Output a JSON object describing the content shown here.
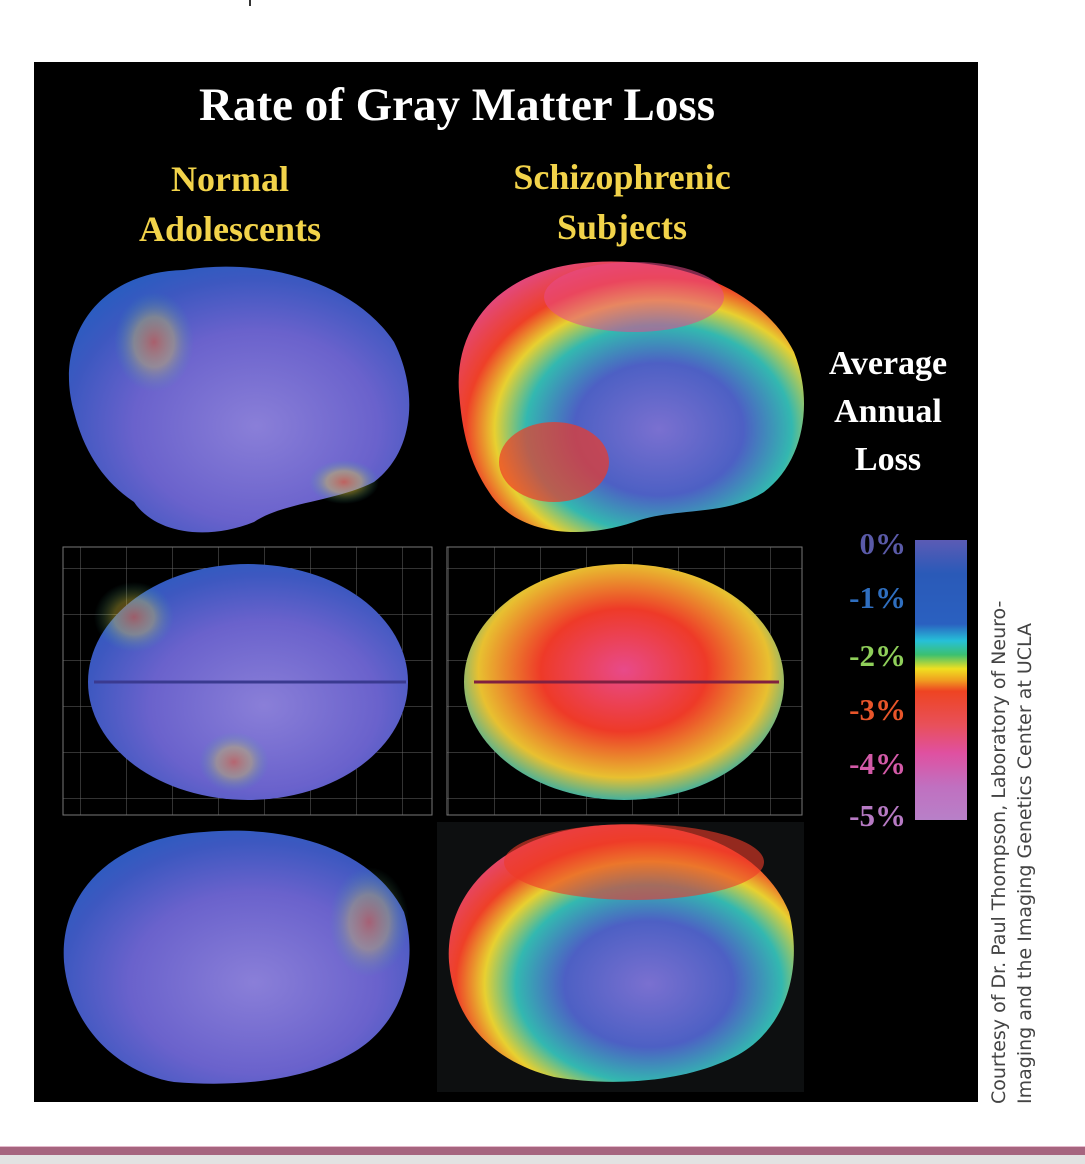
{
  "figure": {
    "title": "Rate of Gray Matter Loss",
    "columns": [
      {
        "line1": "Normal",
        "line2": "Adolescents"
      },
      {
        "line1": "Schizophrenic",
        "line2": "Subjects"
      }
    ],
    "legend": {
      "title_lines": [
        "Average",
        "Annual",
        "Loss"
      ],
      "labels": [
        {
          "text": "0%",
          "color": "#5a5aa8"
        },
        {
          "text": "-1%",
          "color": "#2f6fc0"
        },
        {
          "text": "-2%",
          "color": "#8fcf5a"
        },
        {
          "text": "-3%",
          "color": "#e8552a"
        },
        {
          "text": "-4%",
          "color": "#d35aa8"
        },
        {
          "text": "-5%",
          "color": "#b77ac4"
        }
      ],
      "colorscale": [
        "#5b5bb5",
        "#2a5ab8",
        "#2a60c0",
        "#26c0d8",
        "#3cc070",
        "#f0e020",
        "#f0a020",
        "#ee4422",
        "#e8505a",
        "#e050a0",
        "#c070c0",
        "#b880c8"
      ]
    },
    "credit_lines": [
      "Courtesy of Dr. Paul Thompson, Laboratory of Neuro-",
      "Imaging and the Imaging Genetics Center at UCLA"
    ]
  }
}
